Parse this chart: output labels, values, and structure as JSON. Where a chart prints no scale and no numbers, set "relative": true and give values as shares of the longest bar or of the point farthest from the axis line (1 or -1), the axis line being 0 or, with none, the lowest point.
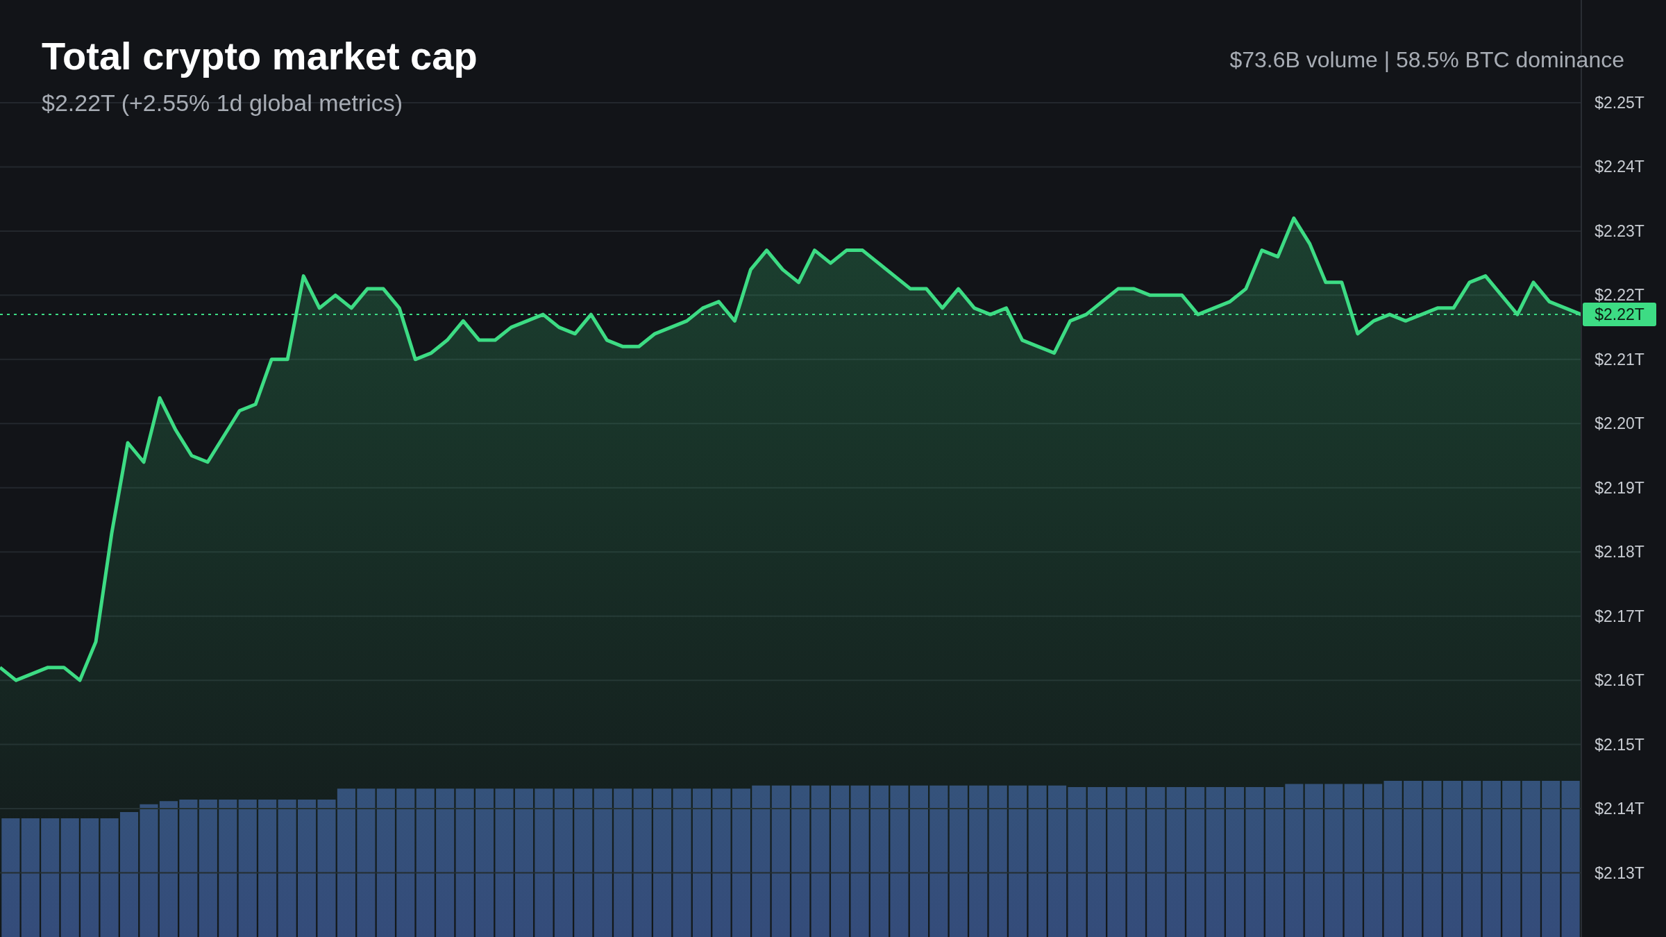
{
  "chart_data": [
    {
      "type": "area",
      "title": "Total crypto market cap",
      "subtitle": "$2.22T (+2.55% 1d global metrics)",
      "annotations": [
        "$73.6B volume | 58.5% BTC dominance"
      ],
      "categories": [
        null,
        null,
        null,
        null,
        null,
        null,
        null,
        null,
        null,
        null,
        null,
        null,
        null,
        null,
        null,
        null,
        null,
        null,
        null,
        null,
        null,
        null,
        null,
        null,
        null,
        null,
        null,
        null,
        null,
        null,
        null,
        null,
        null,
        null,
        null,
        null,
        null,
        null,
        null,
        null,
        null,
        null,
        null,
        null,
        null,
        null,
        null,
        null,
        null,
        null,
        null,
        null,
        null,
        null,
        null,
        null,
        null,
        null,
        null,
        null,
        null,
        null,
        null,
        null,
        null,
        null,
        null,
        null,
        null,
        null,
        null,
        null,
        null,
        null,
        null,
        null,
        null,
        null,
        null,
        null,
        null,
        null,
        null,
        null,
        null,
        null,
        null,
        null,
        null,
        null,
        null,
        null,
        null,
        null,
        null,
        null,
        null,
        null,
        null,
        null
      ],
      "series": [
        {
          "color": "#3ddc84",
          "values": [
            2.162,
            2.16,
            2.161,
            2.162,
            2.162,
            2.16,
            2.166,
            2.183,
            2.197,
            2.194,
            2.204,
            2.199,
            2.195,
            2.194,
            2.198,
            2.202,
            2.203,
            2.21,
            2.21,
            2.223,
            2.218,
            2.22,
            2.218,
            2.221,
            2.221,
            2.218,
            2.21,
            2.211,
            2.213,
            2.216,
            2.213,
            2.213,
            2.215,
            2.216,
            2.217,
            2.215,
            2.214,
            2.217,
            2.213,
            2.212,
            2.212,
            2.214,
            2.215,
            2.216,
            2.218,
            2.219,
            2.216,
            2.224,
            2.227,
            2.224,
            2.222,
            2.227,
            2.225,
            2.227,
            2.227,
            2.225,
            2.223,
            2.221,
            2.221,
            2.218,
            2.221,
            2.218,
            2.217,
            2.218,
            2.213,
            2.212,
            2.211,
            2.216,
            2.217,
            2.219,
            2.221,
            2.221,
            2.22,
            2.22,
            2.22,
            2.217,
            2.218,
            2.219,
            2.221,
            2.227,
            2.226,
            2.232,
            2.228,
            2.222,
            2.222,
            2.214,
            2.216,
            2.217,
            2.216,
            2.217,
            2.218,
            2.218,
            2.222,
            2.223,
            2.22,
            2.217,
            2.222,
            2.219,
            2.218,
            2.217
          ]
        }
      ],
      "ylim": [
        2.12,
        2.266
      ],
      "yticks": [
        {
          "value": 2.13,
          "label": "$2.13T"
        },
        {
          "value": 2.14,
          "label": "$2.14T"
        },
        {
          "value": 2.15,
          "label": "$2.15T"
        },
        {
          "value": 2.16,
          "label": "$2.16T"
        },
        {
          "value": 2.17,
          "label": "$2.17T"
        },
        {
          "value": 2.18,
          "label": "$2.18T"
        },
        {
          "value": 2.19,
          "label": "$2.19T"
        },
        {
          "value": 2.2,
          "label": "$2.20T"
        },
        {
          "value": 2.21,
          "label": "$2.21T"
        },
        {
          "value": 2.22,
          "label": "$2.22T"
        },
        {
          "value": 2.23,
          "label": "$2.23T"
        },
        {
          "value": 2.24,
          "label": "$2.24T"
        },
        {
          "value": 2.25,
          "label": "$2.25T"
        }
      ],
      "ref_lines": [
        {
          "axis": "y",
          "value": 2.217,
          "label": "$2.22T",
          "color": "#3ddc84",
          "line_style": "dotted"
        }
      ],
      "grid": "y",
      "tick_labels": "y"
    },
    {
      "type": "bar",
      "relative": true,
      "color": "#34497a",
      "categories": [
        null,
        null,
        null,
        null,
        null,
        null,
        null,
        null,
        null,
        null,
        null,
        null,
        null,
        null,
        null,
        null,
        null,
        null,
        null,
        null,
        null,
        null,
        null,
        null,
        null,
        null,
        null,
        null,
        null,
        null,
        null,
        null,
        null,
        null,
        null,
        null,
        null,
        null,
        null,
        null,
        null,
        null,
        null,
        null,
        null,
        null,
        null,
        null,
        null,
        null,
        null,
        null,
        null,
        null,
        null,
        null,
        null,
        null,
        null,
        null,
        null,
        null,
        null,
        null,
        null,
        null,
        null,
        null,
        null,
        null,
        null,
        null,
        null,
        null,
        null,
        null,
        null,
        null,
        null,
        null
      ],
      "values": [
        0.76,
        0.76,
        0.76,
        0.76,
        0.76,
        0.76,
        0.8,
        0.85,
        0.87,
        0.88,
        0.88,
        0.88,
        0.88,
        0.88,
        0.88,
        0.88,
        0.88,
        0.95,
        0.95,
        0.95,
        0.95,
        0.95,
        0.95,
        0.95,
        0.95,
        0.95,
        0.95,
        0.95,
        0.95,
        0.95,
        0.95,
        0.95,
        0.95,
        0.95,
        0.95,
        0.95,
        0.95,
        0.95,
        0.97,
        0.97,
        0.97,
        0.97,
        0.97,
        0.97,
        0.97,
        0.97,
        0.97,
        0.97,
        0.97,
        0.97,
        0.97,
        0.97,
        0.97,
        0.97,
        0.96,
        0.96,
        0.96,
        0.96,
        0.96,
        0.96,
        0.96,
        0.96,
        0.96,
        0.96,
        0.96,
        0.98,
        0.98,
        0.98,
        0.98,
        0.98,
        1,
        1,
        1,
        1,
        1,
        1,
        1,
        1,
        1,
        1
      ],
      "tick_labels": false
    }
  ]
}
